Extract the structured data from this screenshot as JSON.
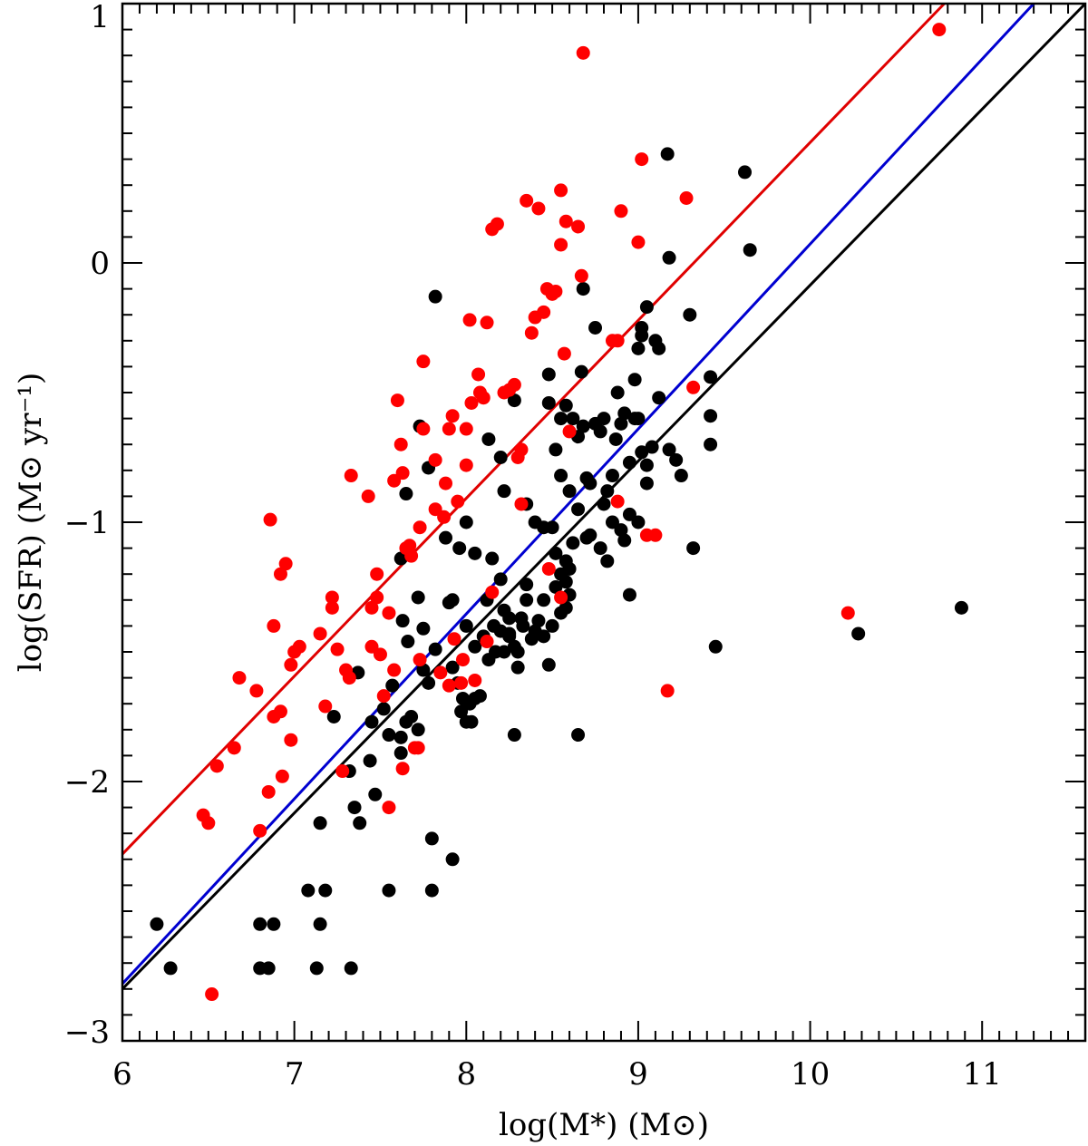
{
  "chart_data": {
    "type": "scatter",
    "xlabel": "log(M*) (M⊙)",
    "ylabel": "log(SFR) (M⊙ yr⁻¹)",
    "xlim": [
      6,
      11.6
    ],
    "ylim": [
      -3,
      1
    ],
    "x_ticks": [
      6,
      7,
      8,
      9,
      10,
      11
    ],
    "x_tick_labels": [
      "6",
      "7",
      "8",
      "9",
      "10",
      "11"
    ],
    "y_ticks": [
      -3,
      -2,
      -1,
      0,
      1
    ],
    "y_tick_labels": [
      "−3",
      "−2",
      "−1",
      "0",
      "1"
    ],
    "colors": {
      "black": "#000000",
      "red": "#ff0000",
      "blue": "#0000d0",
      "red_line": "#e00000"
    },
    "series": [
      {
        "name": "black",
        "color": "#000000",
        "points": [
          [
            6.2,
            -2.55
          ],
          [
            6.28,
            -2.72
          ],
          [
            6.8,
            -2.55
          ],
          [
            6.8,
            -2.72
          ],
          [
            6.85,
            -2.72
          ],
          [
            6.88,
            -2.55
          ],
          [
            7.08,
            -2.42
          ],
          [
            7.13,
            -2.72
          ],
          [
            7.15,
            -2.55
          ],
          [
            7.18,
            -2.42
          ],
          [
            7.15,
            -2.16
          ],
          [
            7.33,
            -2.72
          ],
          [
            7.35,
            -2.1
          ],
          [
            7.38,
            -2.16
          ],
          [
            7.55,
            -2.42
          ],
          [
            7.32,
            -1.96
          ],
          [
            7.37,
            -1.58
          ],
          [
            7.23,
            -1.75
          ],
          [
            7.44,
            -1.92
          ],
          [
            7.47,
            -2.05
          ],
          [
            7.45,
            -1.77
          ],
          [
            7.52,
            -1.72
          ],
          [
            7.57,
            -1.63
          ],
          [
            7.55,
            -1.82
          ],
          [
            7.62,
            -1.89
          ],
          [
            7.62,
            -1.83
          ],
          [
            7.63,
            -1.38
          ],
          [
            7.65,
            -1.77
          ],
          [
            7.68,
            -1.75
          ],
          [
            7.72,
            -1.8
          ],
          [
            7.66,
            -1.46
          ],
          [
            7.62,
            -1.14
          ],
          [
            7.65,
            -0.89
          ],
          [
            7.72,
            -1.29
          ],
          [
            7.75,
            -1.41
          ],
          [
            7.78,
            -0.79
          ],
          [
            7.82,
            -0.13
          ],
          [
            7.73,
            -0.63
          ],
          [
            7.78,
            -1.62
          ],
          [
            7.82,
            -1.49
          ],
          [
            7.9,
            -1.31
          ],
          [
            7.92,
            -1.56
          ],
          [
            7.95,
            -1.62
          ],
          [
            7.98,
            -1.68
          ],
          [
            7.97,
            -1.73
          ],
          [
            8.02,
            -1.7
          ],
          [
            8.05,
            -1.68
          ],
          [
            8.08,
            -1.67
          ],
          [
            8.0,
            -1.4
          ],
          [
            8.05,
            -1.48
          ],
          [
            8.1,
            -1.44
          ],
          [
            8.03,
            -1.77
          ],
          [
            8.0,
            -1.77
          ],
          [
            7.88,
            -1.06
          ],
          [
            7.96,
            -1.1
          ],
          [
            8.0,
            -1.0
          ],
          [
            8.05,
            -1.12
          ],
          [
            8.15,
            -1.14
          ],
          [
            8.12,
            -1.3
          ],
          [
            8.16,
            -1.4
          ],
          [
            8.2,
            -1.42
          ],
          [
            8.2,
            -1.22
          ],
          [
            8.22,
            -1.34
          ],
          [
            8.25,
            -1.44
          ],
          [
            8.28,
            -1.48
          ],
          [
            8.3,
            -1.56
          ],
          [
            8.33,
            -1.4
          ],
          [
            8.35,
            -1.24
          ],
          [
            8.38,
            -1.45
          ],
          [
            8.42,
            -1.38
          ],
          [
            8.45,
            -1.3
          ],
          [
            8.5,
            -1.4
          ],
          [
            8.52,
            -1.25
          ],
          [
            8.55,
            -1.35
          ],
          [
            8.58,
            -1.33
          ],
          [
            8.55,
            -1.2
          ],
          [
            8.6,
            -1.18
          ],
          [
            8.48,
            -1.55
          ],
          [
            8.45,
            -1.44
          ],
          [
            8.4,
            -1.42
          ],
          [
            8.35,
            -1.3
          ],
          [
            8.3,
            -1.5
          ],
          [
            8.25,
            -1.37
          ],
          [
            8.22,
            -1.5
          ],
          [
            8.28,
            -1.82
          ],
          [
            8.65,
            -1.82
          ],
          [
            7.8,
            -2.22
          ],
          [
            7.8,
            -2.42
          ],
          [
            7.92,
            -2.3
          ],
          [
            7.75,
            -1.57
          ],
          [
            7.92,
            -1.3
          ],
          [
            8.13,
            -0.68
          ],
          [
            8.2,
            -0.75
          ],
          [
            8.22,
            -0.88
          ],
          [
            8.28,
            -0.53
          ],
          [
            8.35,
            -0.93
          ],
          [
            8.4,
            -1.0
          ],
          [
            8.45,
            -1.02
          ],
          [
            8.48,
            -0.54
          ],
          [
            8.48,
            -0.43
          ],
          [
            8.5,
            -1.02
          ],
          [
            8.52,
            -0.72
          ],
          [
            8.55,
            -0.6
          ],
          [
            8.55,
            -0.82
          ],
          [
            8.58,
            -0.55
          ],
          [
            8.6,
            -0.88
          ],
          [
            8.62,
            -0.6
          ],
          [
            8.65,
            -0.67
          ],
          [
            8.67,
            -0.42
          ],
          [
            8.68,
            -0.63
          ],
          [
            8.72,
            -0.85
          ],
          [
            8.75,
            -0.62
          ],
          [
            8.78,
            -0.65
          ],
          [
            8.8,
            -0.6
          ],
          [
            8.82,
            -0.88
          ],
          [
            8.85,
            -0.82
          ],
          [
            8.87,
            -0.68
          ],
          [
            8.9,
            -0.62
          ],
          [
            8.92,
            -0.58
          ],
          [
            8.95,
            -0.77
          ],
          [
            8.98,
            -0.6
          ],
          [
            9.0,
            -0.6
          ],
          [
            9.02,
            -0.73
          ],
          [
            9.05,
            -0.85
          ],
          [
            8.88,
            -0.5
          ],
          [
            8.98,
            -0.45
          ],
          [
            9.0,
            -0.33
          ],
          [
            9.02,
            -0.28
          ],
          [
            9.02,
            -0.25
          ],
          [
            9.05,
            -0.17
          ],
          [
            9.1,
            -0.3
          ],
          [
            9.12,
            -0.33
          ],
          [
            9.12,
            -0.52
          ],
          [
            9.17,
            0.42
          ],
          [
            9.18,
            0.02
          ],
          [
            9.18,
            -0.72
          ],
          [
            9.22,
            -0.76
          ],
          [
            9.25,
            -0.82
          ],
          [
            9.3,
            -0.2
          ],
          [
            9.32,
            -1.1
          ],
          [
            9.42,
            -0.44
          ],
          [
            9.42,
            -0.59
          ],
          [
            9.42,
            -0.7
          ],
          [
            9.45,
            -1.48
          ],
          [
            9.62,
            0.35
          ],
          [
            9.65,
            0.05
          ],
          [
            8.75,
            -0.25
          ],
          [
            8.68,
            -0.1
          ],
          [
            8.7,
            -0.83
          ],
          [
            8.65,
            -0.95
          ],
          [
            8.62,
            -1.08
          ],
          [
            8.7,
            -1.06
          ],
          [
            8.72,
            -1.05
          ],
          [
            8.78,
            -1.1
          ],
          [
            8.8,
            -0.93
          ],
          [
            8.82,
            -1.15
          ],
          [
            8.85,
            -1.0
          ],
          [
            8.9,
            -1.03
          ],
          [
            8.92,
            -1.07
          ],
          [
            8.95,
            -0.97
          ],
          [
            8.95,
            -1.28
          ],
          [
            9.0,
            -1.0
          ],
          [
            9.05,
            -0.78
          ],
          [
            9.08,
            -0.71
          ],
          [
            8.58,
            -1.23
          ],
          [
            8.6,
            -1.28
          ],
          [
            8.52,
            -1.12
          ],
          [
            8.58,
            -1.15
          ],
          [
            10.28,
            -1.43
          ],
          [
            10.88,
            -1.33
          ],
          [
            8.32,
            -1.37
          ],
          [
            8.25,
            -1.43
          ],
          [
            8.17,
            -1.5
          ],
          [
            8.13,
            -1.53
          ]
        ]
      },
      {
        "name": "red",
        "color": "#ff0000",
        "points": [
          [
            6.47,
            -2.13
          ],
          [
            6.5,
            -2.16
          ],
          [
            6.52,
            -2.82
          ],
          [
            6.55,
            -1.94
          ],
          [
            6.65,
            -1.87
          ],
          [
            6.68,
            -1.6
          ],
          [
            6.78,
            -1.65
          ],
          [
            6.8,
            -2.19
          ],
          [
            6.85,
            -2.04
          ],
          [
            6.86,
            -0.99
          ],
          [
            6.88,
            -1.4
          ],
          [
            6.88,
            -1.75
          ],
          [
            6.92,
            -1.73
          ],
          [
            6.93,
            -1.98
          ],
          [
            6.92,
            -1.2
          ],
          [
            6.95,
            -1.16
          ],
          [
            6.98,
            -1.55
          ],
          [
            6.98,
            -1.84
          ],
          [
            7.0,
            -1.5
          ],
          [
            7.03,
            -1.48
          ],
          [
            7.15,
            -1.43
          ],
          [
            7.18,
            -1.71
          ],
          [
            7.22,
            -1.29
          ],
          [
            7.22,
            -1.33
          ],
          [
            7.25,
            -1.49
          ],
          [
            7.28,
            -1.96
          ],
          [
            7.3,
            -1.57
          ],
          [
            7.32,
            -1.6
          ],
          [
            7.33,
            -0.82
          ],
          [
            7.43,
            -0.9
          ],
          [
            7.45,
            -1.48
          ],
          [
            7.45,
            -1.33
          ],
          [
            7.48,
            -1.2
          ],
          [
            7.48,
            -1.29
          ],
          [
            7.5,
            -1.51
          ],
          [
            7.52,
            -1.67
          ],
          [
            7.55,
            -2.1
          ],
          [
            7.55,
            -1.35
          ],
          [
            7.58,
            -1.57
          ],
          [
            7.58,
            -0.84
          ],
          [
            7.6,
            -0.53
          ],
          [
            7.62,
            -0.7
          ],
          [
            7.63,
            -0.81
          ],
          [
            7.63,
            -1.95
          ],
          [
            7.65,
            -1.1
          ],
          [
            7.67,
            -1.09
          ],
          [
            7.68,
            -1.13
          ],
          [
            7.7,
            -1.87
          ],
          [
            7.72,
            -1.87
          ],
          [
            7.73,
            -1.02
          ],
          [
            7.73,
            -1.53
          ],
          [
            7.75,
            -0.38
          ],
          [
            7.75,
            -0.64
          ],
          [
            7.82,
            -0.76
          ],
          [
            7.82,
            -0.95
          ],
          [
            7.85,
            -1.58
          ],
          [
            7.87,
            -0.98
          ],
          [
            7.88,
            -0.85
          ],
          [
            7.9,
            -1.63
          ],
          [
            7.9,
            -0.64
          ],
          [
            7.92,
            -0.59
          ],
          [
            7.93,
            -1.45
          ],
          [
            7.95,
            -0.92
          ],
          [
            7.97,
            -1.62
          ],
          [
            7.98,
            -1.53
          ],
          [
            8.0,
            -0.78
          ],
          [
            8.0,
            -0.64
          ],
          [
            8.02,
            -0.22
          ],
          [
            8.03,
            -0.54
          ],
          [
            8.05,
            -1.61
          ],
          [
            8.07,
            -0.43
          ],
          [
            8.08,
            -0.5
          ],
          [
            8.1,
            -0.52
          ],
          [
            8.12,
            -1.46
          ],
          [
            8.12,
            -0.23
          ],
          [
            8.15,
            -1.27
          ],
          [
            8.15,
            0.13
          ],
          [
            8.18,
            0.15
          ],
          [
            8.22,
            -0.5
          ],
          [
            8.25,
            -0.49
          ],
          [
            8.28,
            -0.47
          ],
          [
            8.3,
            -0.75
          ],
          [
            8.32,
            -0.93
          ],
          [
            8.35,
            0.24
          ],
          [
            8.38,
            -0.27
          ],
          [
            8.4,
            -0.21
          ],
          [
            8.42,
            0.21
          ],
          [
            8.45,
            -0.19
          ],
          [
            8.47,
            -0.1
          ],
          [
            8.48,
            -1.18
          ],
          [
            8.5,
            -0.12
          ],
          [
            8.55,
            -1.29
          ],
          [
            8.55,
            0.07
          ],
          [
            8.57,
            -0.35
          ],
          [
            8.58,
            0.16
          ],
          [
            8.6,
            -0.65
          ],
          [
            8.65,
            0.14
          ],
          [
            8.67,
            -0.05
          ],
          [
            8.68,
            0.81
          ],
          [
            8.55,
            0.28
          ],
          [
            8.52,
            -0.11
          ],
          [
            8.85,
            -0.3
          ],
          [
            8.88,
            -0.92
          ],
          [
            8.9,
            0.2
          ],
          [
            9.0,
            0.08
          ],
          [
            9.02,
            0.4
          ],
          [
            9.05,
            -1.05
          ],
          [
            9.1,
            -1.05
          ],
          [
            9.17,
            -1.65
          ],
          [
            9.28,
            0.25
          ],
          [
            9.32,
            -0.48
          ],
          [
            10.22,
            -1.35
          ],
          [
            10.75,
            0.9
          ],
          [
            8.88,
            -0.3
          ],
          [
            8.32,
            -0.72
          ]
        ]
      }
    ],
    "fit_lines": [
      {
        "name": "red-fit",
        "color": "#e00000",
        "x": [
          6,
          10.78
        ],
        "y": [
          -2.28,
          1.0
        ]
      },
      {
        "name": "blue-fit",
        "color": "#0000d0",
        "x": [
          6,
          11.3
        ],
        "y": [
          -2.78,
          1.0
        ]
      },
      {
        "name": "black-fit",
        "color": "#000000",
        "x": [
          6,
          11.6
        ],
        "y": [
          -2.8,
          1.0
        ]
      }
    ]
  }
}
